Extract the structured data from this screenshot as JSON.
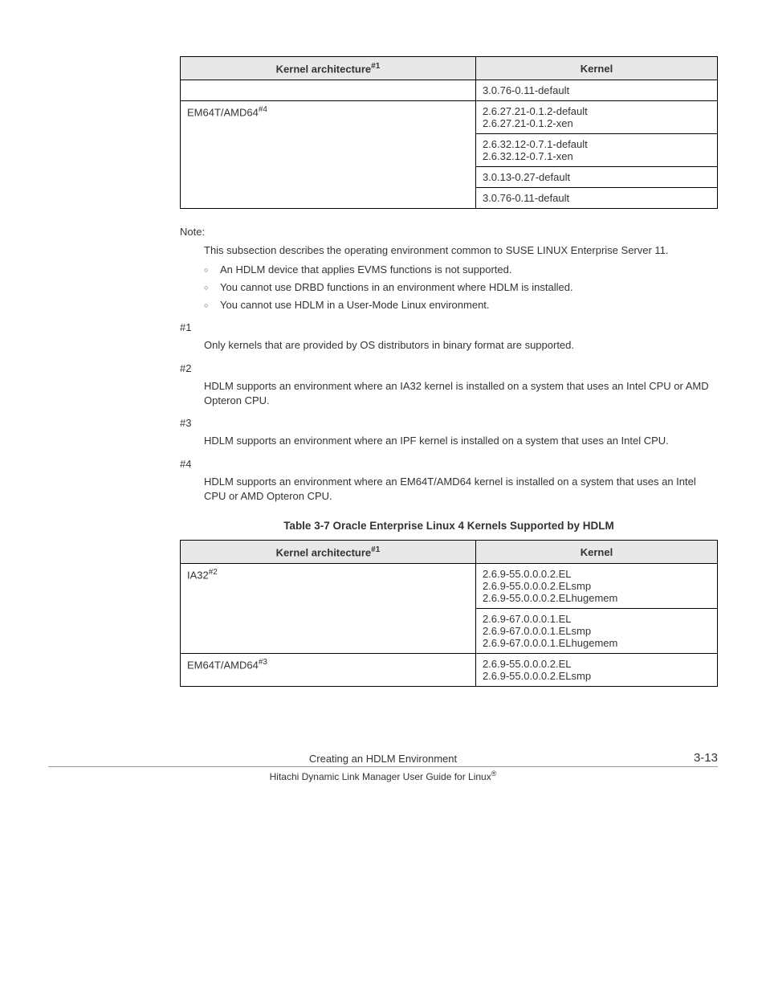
{
  "table1": {
    "headers": {
      "arch": "Kernel architecture",
      "arch_sup": "#1",
      "kernel": "Kernel"
    },
    "row_top": "3.0.76-0.11-default",
    "arch2": "EM64T/AMD64",
    "arch2_sup": "#4",
    "r2a": "2.6.27.21-0.1.2-default\n2.6.27.21-0.1.2-xen",
    "r2b": "2.6.32.12-0.7.1-default\n2.6.32.12-0.7.1-xen",
    "r2c": "3.0.13-0.27-default",
    "r2d": "3.0.76-0.11-default"
  },
  "notes": {
    "note_label": "Note:",
    "note_text": "This subsection describes the operating environment common to SUSE LINUX Enterprise Server 11.",
    "b1": "An HDLM device that applies EVMS functions is not supported.",
    "b2": "You cannot use DRBD functions in an environment where HDLM is installed.",
    "b3": "You cannot use HDLM in a User-Mode Linux environment.",
    "h1": "#1",
    "h1_text": "Only kernels that are provided by OS distributors in binary format are supported.",
    "h2": "#2",
    "h2_text": "HDLM supports an environment where an IA32 kernel is installed on a system that uses an Intel CPU or AMD Opteron CPU.",
    "h3": "#3",
    "h3_text": "HDLM supports an environment where an IPF kernel is installed on a system that uses an Intel CPU.",
    "h4": "#4",
    "h4_text": "HDLM supports an environment where an EM64T/AMD64 kernel is installed on a system that uses an Intel CPU or AMD Opteron CPU."
  },
  "table2": {
    "caption": "Table 3-7 Oracle Enterprise Linux 4 Kernels Supported by HDLM",
    "headers": {
      "arch": "Kernel architecture",
      "arch_sup": "#1",
      "kernel": "Kernel"
    },
    "arch1": "IA32",
    "arch1_sup": "#2",
    "r1a": "2.6.9-55.0.0.0.2.EL\n2.6.9-55.0.0.0.2.ELsmp\n2.6.9-55.0.0.0.2.ELhugemem",
    "r1b": "2.6.9-67.0.0.0.1.EL\n2.6.9-67.0.0.0.1.ELsmp\n2.6.9-67.0.0.0.1.ELhugemem",
    "arch2": "EM64T/AMD64",
    "arch2_sup": "#3",
    "r2a": "2.6.9-55.0.0.0.2.EL\n2.6.9-55.0.0.0.2.ELsmp"
  },
  "footer": {
    "center": "Creating an HDLM Environment",
    "right": "3-13",
    "bottom": "Hitachi Dynamic Link Manager User Guide for Linux",
    "reg": "®"
  }
}
